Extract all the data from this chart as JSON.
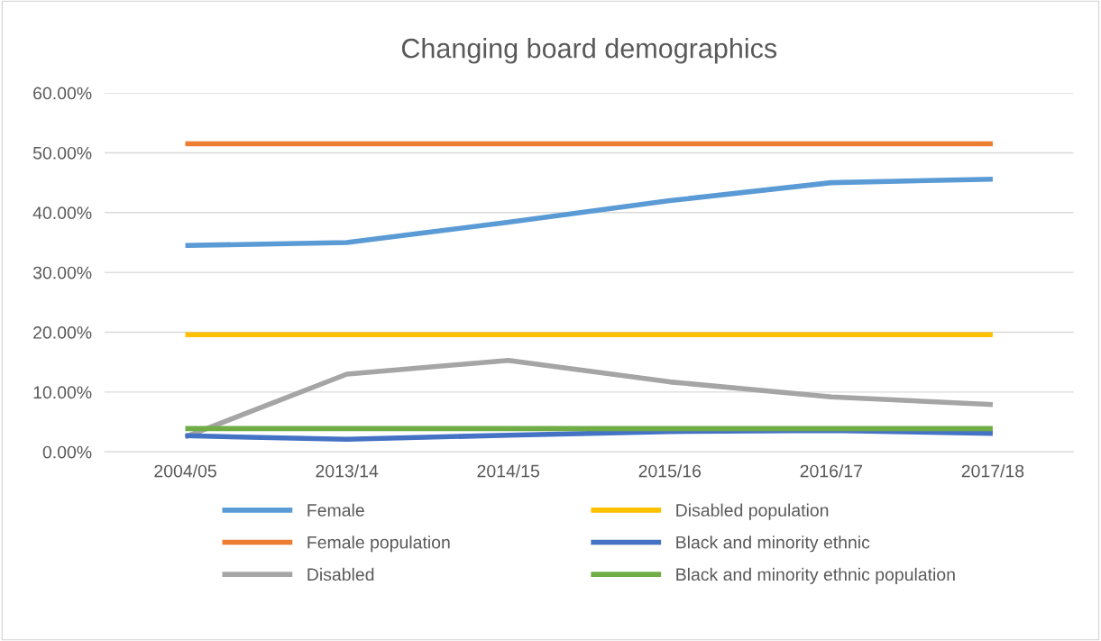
{
  "chart_data": {
    "type": "line",
    "title": "Changing board demographics",
    "categories": [
      "2004/05",
      "2013/14",
      "2014/15",
      "2015/16",
      "2016/17",
      "2017/18"
    ],
    "series": [
      {
        "name": "Female",
        "color": "#5b9bd5",
        "values": [
          34.5,
          35.0,
          38.4,
          42.0,
          45.0,
          45.6
        ]
      },
      {
        "name": "Female population",
        "color": "#ed7d31",
        "values": [
          51.5,
          51.5,
          51.5,
          51.5,
          51.5,
          51.5
        ]
      },
      {
        "name": "Disabled",
        "color": "#a5a5a5",
        "values": [
          2.5,
          13.0,
          15.3,
          11.7,
          9.2,
          7.9
        ]
      },
      {
        "name": "Disabled population",
        "color": "#ffc000",
        "values": [
          19.6,
          19.6,
          19.6,
          19.6,
          19.6,
          19.6
        ]
      },
      {
        "name": "Black and minority ethnic",
        "color": "#4472c4",
        "values": [
          2.7,
          2.1,
          2.8,
          3.4,
          3.6,
          3.1
        ]
      },
      {
        "name": "Black and minority ethnic population",
        "color": "#70ad47",
        "values": [
          3.9,
          3.9,
          3.9,
          3.9,
          3.9,
          3.9
        ]
      }
    ],
    "ylim": [
      0,
      60
    ],
    "yticks": [
      {
        "value": 0,
        "label": "0.00%"
      },
      {
        "value": 10,
        "label": "10.00%"
      },
      {
        "value": 20,
        "label": "20.00%"
      },
      {
        "value": 30,
        "label": "30.00%"
      },
      {
        "value": 40,
        "label": "40.00%"
      },
      {
        "value": 50,
        "label": "50.00%"
      },
      {
        "value": 60,
        "label": "60.00%"
      }
    ],
    "grid": "y",
    "legend": "bottom",
    "marker": "none",
    "line_style": "solid"
  }
}
